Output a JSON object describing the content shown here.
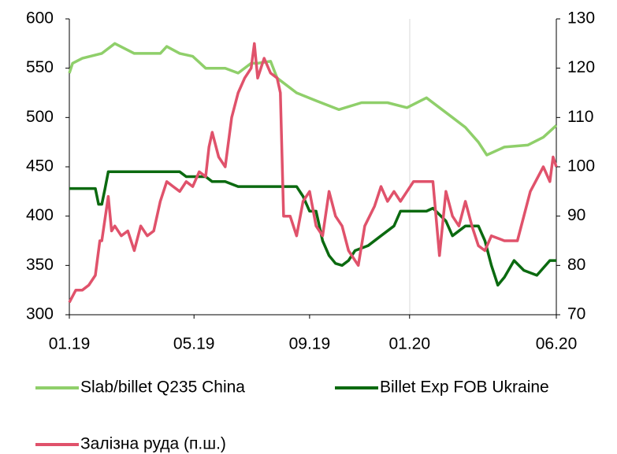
{
  "chart_data": {
    "type": "line",
    "xlim": [
      0,
      75
    ],
    "xticks": [
      {
        "value": 0,
        "label": "01.19"
      },
      {
        "value": 19.2,
        "label": "05.19"
      },
      {
        "value": 37,
        "label": "09.19"
      },
      {
        "value": 52.4,
        "label": "01.20"
      },
      {
        "value": 75,
        "label": "06.20"
      }
    ],
    "ylim": [
      300,
      600
    ],
    "yticks": [
      300,
      350,
      400,
      450,
      500,
      550,
      600
    ],
    "y2lim": [
      70,
      130
    ],
    "y2ticks": [
      70,
      80,
      90,
      100,
      110,
      120,
      130
    ],
    "grid": false,
    "legend": "bottom",
    "series": [
      {
        "name": "Slab/billet Q235 China",
        "color": "#8fcf6a",
        "x": [
          0,
          0.5,
          2,
          5,
          7,
          10,
          14,
          15,
          17,
          19,
          21,
          24,
          26,
          28,
          29,
          31,
          32,
          35,
          38,
          41.5,
          45,
          49,
          52,
          55,
          57,
          59,
          61,
          63,
          64.3,
          67,
          70.6,
          73,
          75
        ],
        "values": [
          545,
          555,
          560,
          565,
          575,
          565,
          565,
          572,
          565,
          562,
          550,
          550,
          545,
          555,
          555,
          557,
          540,
          525,
          517,
          508,
          515,
          515,
          510,
          520,
          510,
          500,
          490,
          475,
          462,
          470,
          472,
          480,
          492
        ]
      },
      {
        "name": "Billet Exp FOB Ukraine",
        "color": "#0b6a10",
        "x": [
          0,
          4,
          4.5,
          5,
          5.5,
          6,
          17,
          18,
          21,
          22,
          24,
          26,
          35,
          36,
          37,
          38,
          39,
          40,
          41,
          42,
          43,
          44,
          46,
          48,
          50,
          51,
          55,
          56,
          58,
          59,
          61,
          63,
          64,
          65,
          66,
          67,
          68.5,
          70,
          72,
          74,
          75
        ],
        "values": [
          428,
          428,
          412,
          412,
          428,
          445,
          445,
          440,
          440,
          435,
          435,
          430,
          430,
          420,
          405,
          405,
          375,
          360,
          352,
          350,
          355,
          365,
          370,
          380,
          390,
          405,
          405,
          408,
          395,
          380,
          390,
          390,
          375,
          350,
          330,
          338,
          355,
          345,
          340,
          355,
          355
        ]
      },
      {
        "name": "Залізна руда (п.ш.)",
        "color": "#e0526b",
        "axis": "y2",
        "x": [
          0,
          1,
          2,
          3,
          4,
          4.7,
          5,
          6,
          6.5,
          7,
          8,
          9,
          10,
          11,
          12,
          13,
          14,
          15,
          16,
          17,
          18,
          19,
          20,
          21,
          21.5,
          22,
          23,
          24,
          25,
          26,
          27,
          28,
          28.5,
          29,
          30,
          31,
          32,
          32.5,
          33,
          34,
          35,
          36,
          37,
          38,
          39,
          40,
          41,
          42,
          43,
          44.5,
          45.5,
          47,
          48,
          49,
          50,
          51,
          52,
          53,
          56,
          57,
          58,
          59,
          60,
          61,
          62,
          63,
          64,
          65,
          67,
          69,
          71,
          73,
          74,
          74.5,
          75
        ],
        "values": [
          72.5,
          75,
          75,
          76,
          78,
          85,
          85,
          94,
          87,
          88,
          86,
          87,
          83,
          88,
          86,
          87,
          93,
          97,
          96,
          95,
          97,
          96,
          99,
          98,
          104,
          107,
          102,
          100,
          110,
          115,
          118,
          120,
          125,
          118,
          122,
          119,
          118,
          115,
          90,
          90,
          86,
          93,
          95,
          88,
          86,
          95,
          90,
          88,
          83,
          80,
          88,
          92,
          96,
          93,
          95,
          93,
          95,
          97,
          97,
          82,
          95,
          90,
          88,
          93,
          88,
          84,
          83,
          86,
          85,
          85,
          95,
          100,
          97,
          102,
          100
        ]
      }
    ]
  }
}
